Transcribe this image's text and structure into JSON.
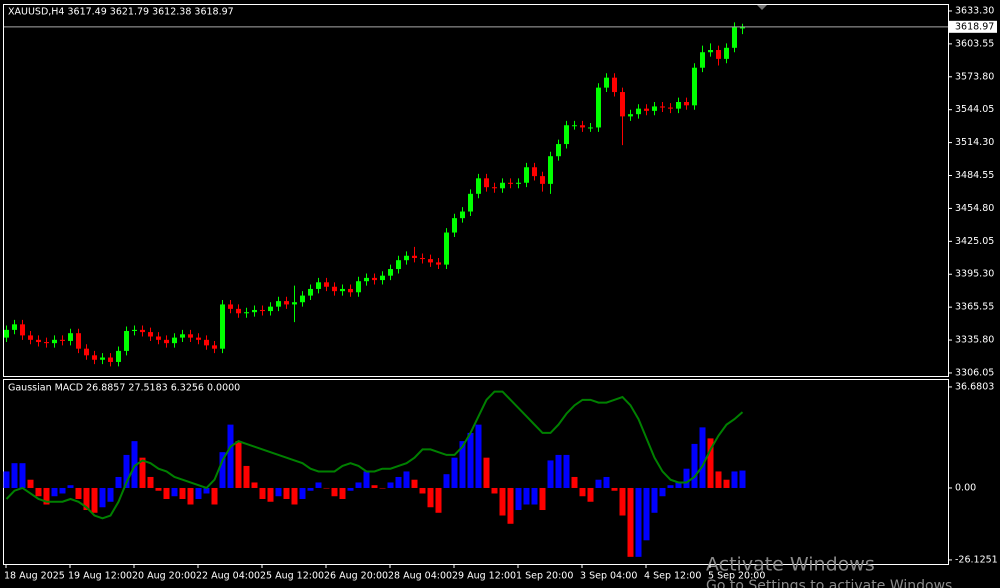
{
  "chart_data": [
    {
      "type": "candlestick",
      "title": "XAUUSD,H4  3617.49 3621.79 3612.38 3618.97",
      "open": [
        3338,
        3345,
        3350,
        3340,
        3336,
        3334,
        3333,
        3336,
        3335,
        3342,
        3328,
        3322,
        3318,
        3320,
        3316,
        3326,
        3344,
        3345,
        3343,
        3339,
        3336,
        3333,
        3338,
        3341,
        3338,
        3336,
        3331,
        3328,
        3368,
        3364,
        3360,
        3361,
        3363,
        3362,
        3366,
        3371,
        3368,
        3370,
        3376,
        3382,
        3388,
        3384,
        3380,
        3382,
        3379,
        3389,
        3392,
        3390,
        3394,
        3400,
        3408,
        3412,
        3410,
        3409,
        3406,
        3404,
        3433,
        3446,
        3452,
        3468,
        3482,
        3474,
        3473,
        3478,
        3477,
        3478,
        3492,
        3484,
        3477,
        3502,
        3513,
        3530,
        3530,
        3528,
        3528,
        3564,
        3573,
        3560,
        3538,
        3540,
        3545,
        3543,
        3547,
        3546,
        3545,
        3551,
        3548,
        3582,
        3596,
        3598,
        3590,
        3600,
        3617.49
      ],
      "high": [
        3349,
        3354,
        3354,
        3344,
        3340,
        3338,
        3340,
        3340,
        3346,
        3346,
        3332,
        3326,
        3324,
        3324,
        3330,
        3348,
        3349,
        3349,
        3347,
        3343,
        3340,
        3342,
        3345,
        3345,
        3342,
        3340,
        3335,
        3372,
        3372,
        3368,
        3365,
        3367,
        3367,
        3370,
        3375,
        3375,
        3385,
        3380,
        3386,
        3392,
        3392,
        3388,
        3386,
        3386,
        3393,
        3396,
        3396,
        3398,
        3404,
        3412,
        3416,
        3420,
        3414,
        3413,
        3410,
        3437,
        3450,
        3456,
        3472,
        3486,
        3486,
        3478,
        3482,
        3482,
        3482,
        3496,
        3496,
        3488,
        3506,
        3517,
        3534,
        3534,
        3534,
        3532,
        3568,
        3577,
        3577,
        3564,
        3544,
        3549,
        3549,
        3551,
        3551,
        3550,
        3555,
        3555,
        3586,
        3602,
        3604,
        3602,
        3604,
        3623,
        3621.79
      ],
      "low": [
        3334,
        3341,
        3336,
        3332,
        3330,
        3329,
        3329,
        3331,
        3331,
        3324,
        3318,
        3314,
        3314,
        3312,
        3312,
        3322,
        3340,
        3339,
        3335,
        3332,
        3329,
        3329,
        3334,
        3334,
        3332,
        3327,
        3324,
        3324,
        3360,
        3356,
        3356,
        3357,
        3358,
        3358,
        3362,
        3364,
        3352,
        3366,
        3372,
        3378,
        3380,
        3376,
        3376,
        3375,
        3375,
        3385,
        3386,
        3386,
        3390,
        3396,
        3404,
        3406,
        3405,
        3402,
        3400,
        3400,
        3429,
        3442,
        3448,
        3464,
        3470,
        3469,
        3469,
        3473,
        3473,
        3474,
        3480,
        3470,
        3468,
        3498,
        3509,
        3526,
        3524,
        3524,
        3524,
        3560,
        3556,
        3512,
        3534,
        3536,
        3539,
        3539,
        3542,
        3541,
        3541,
        3544,
        3544,
        3578,
        3592,
        3584,
        3586,
        3596,
        3612.38
      ],
      "close": [
        3345,
        3350,
        3340,
        3336,
        3334,
        3333,
        3336,
        3335,
        3342,
        3328,
        3322,
        3318,
        3320,
        3316,
        3326,
        3344,
        3345,
        3343,
        3339,
        3336,
        3333,
        3338,
        3341,
        3338,
        3336,
        3331,
        3328,
        3368,
        3364,
        3360,
        3361,
        3363,
        3362,
        3366,
        3371,
        3368,
        3370,
        3376,
        3382,
        3388,
        3384,
        3380,
        3382,
        3379,
        3389,
        3392,
        3390,
        3394,
        3400,
        3408,
        3412,
        3410,
        3409,
        3406,
        3404,
        3433,
        3446,
        3452,
        3468,
        3482,
        3474,
        3473,
        3478,
        3477,
        3478,
        3492,
        3484,
        3477,
        3502,
        3513,
        3530,
        3530,
        3528,
        3528,
        3564,
        3573,
        3560,
        3538,
        3540,
        3545,
        3543,
        3547,
        3546,
        3545,
        3551,
        3548,
        3582,
        3596,
        3598,
        3590,
        3600,
        3619,
        3618.97
      ],
      "up_color": "#00ff00",
      "down_color": "#ff0000",
      "ylim": [
        3302.4,
        3638.7
      ],
      "yticks": [
        {
          "value": 3633.3,
          "label": "3633.30"
        },
        {
          "value": 3603.55,
          "label": "3603.55"
        },
        {
          "value": 3573.8,
          "label": "3573.80"
        },
        {
          "value": 3544.05,
          "label": "3544.05"
        },
        {
          "value": 3514.3,
          "label": "3514.30"
        },
        {
          "value": 3484.55,
          "label": "3484.55"
        },
        {
          "value": 3454.8,
          "label": "3454.80"
        },
        {
          "value": 3425.05,
          "label": "3425.05"
        },
        {
          "value": 3395.3,
          "label": "3395.30"
        },
        {
          "value": 3365.55,
          "label": "3365.55"
        },
        {
          "value": 3335.8,
          "label": "3335.80"
        },
        {
          "value": 3306.05,
          "label": "3306.05"
        }
      ],
      "current_price": {
        "value": 3618.97,
        "label": "3618.97"
      }
    },
    {
      "type": "macd",
      "title": "Gaussian MACD 26.8857 27.5183 6.3256 0.0000",
      "categories": [
        "18 Aug 2025",
        null,
        null,
        null,
        null,
        null,
        null,
        null,
        "19 Aug 12:00",
        null,
        null,
        null,
        null,
        null,
        null,
        null,
        "20 Aug 20:00",
        null,
        null,
        null,
        null,
        null,
        null,
        null,
        "22 Aug 04:00",
        null,
        null,
        null,
        null,
        null,
        null,
        null,
        "25 Aug 12:00",
        null,
        null,
        null,
        null,
        null,
        null,
        null,
        "26 Aug 20:00",
        null,
        null,
        null,
        null,
        null,
        null,
        null,
        "28 Aug 04:00",
        null,
        null,
        null,
        null,
        null,
        null,
        null,
        "29 Aug 12:00",
        null,
        null,
        null,
        null,
        null,
        null,
        null,
        "1 Sep 20:00",
        null,
        null,
        null,
        null,
        null,
        null,
        null,
        "3 Sep 04:00",
        null,
        null,
        null,
        null,
        null,
        null,
        null,
        "4 Sep 12:00",
        null,
        null,
        null,
        null,
        null,
        null,
        null,
        "5 Sep 20:00",
        null,
        null,
        null,
        null
      ],
      "histogram": {
        "values": [
          6,
          9,
          9,
          3,
          -3,
          -6,
          -3,
          -2,
          1,
          -4,
          -8,
          -9,
          -7,
          -5,
          4,
          12,
          17,
          11,
          4,
          -1,
          -4,
          -3,
          -4,
          -6,
          -4,
          -2,
          -6,
          13,
          23,
          17,
          8,
          2,
          -4,
          -5,
          -3,
          -4,
          -6,
          -4,
          -1,
          2,
          0,
          -3,
          -4,
          -1,
          2,
          6,
          1,
          0,
          2,
          4,
          6,
          3,
          -2,
          -7,
          -9,
          5,
          11,
          17,
          20,
          23,
          11,
          -2,
          -10,
          -13,
          -8,
          -6,
          -6,
          -8,
          10,
          12,
          12,
          4,
          -3,
          -5,
          3,
          4,
          -1,
          -10,
          -25,
          -25,
          -19,
          -9,
          -3,
          1,
          2,
          7,
          16,
          22,
          18,
          6,
          3,
          6,
          6.3256
        ],
        "up_color": "#0000ff",
        "down_color": "#ff0000"
      },
      "signal": {
        "values": [
          -4,
          -1,
          0,
          -2,
          -4,
          -5,
          -5,
          -5,
          -4,
          -5,
          -7,
          -10,
          -11,
          -10,
          -5,
          2,
          8,
          10,
          9,
          7,
          6,
          4,
          3,
          2,
          1,
          0,
          3,
          10,
          15,
          17,
          16,
          15,
          14,
          13,
          12,
          11,
          10,
          9,
          7,
          6,
          6,
          6,
          8,
          9,
          8,
          6,
          6,
          7,
          7,
          8,
          9,
          11,
          14,
          14,
          13,
          12,
          12,
          15,
          20,
          26,
          32,
          35,
          35,
          32,
          29,
          26,
          23,
          20,
          20,
          23,
          27,
          30,
          32,
          32,
          31,
          31,
          32,
          33,
          30,
          25,
          18,
          11,
          6,
          3,
          2,
          2,
          4,
          8,
          14,
          19,
          23,
          25,
          27.5183
        ],
        "color": "#008000"
      },
      "ylim": [
        -27.6,
        39.2
      ],
      "yticks": [
        36.6803,
        {
          "value": 0,
          "label": "0.00"
        },
        -26.1251
      ]
    }
  ],
  "watermark": {
    "title": "Activate Windows",
    "subtitle": "Go to Settings to activate Windows."
  }
}
